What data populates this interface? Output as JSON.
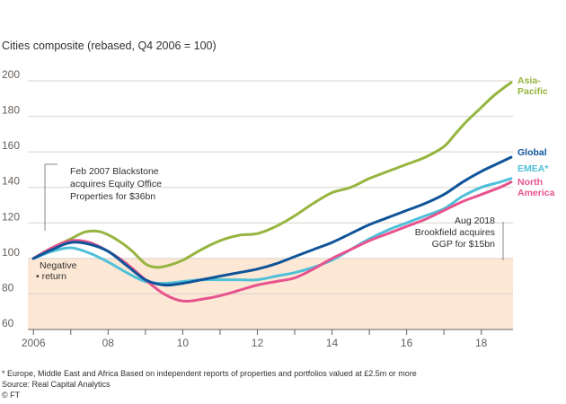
{
  "chart_data": {
    "type": "line",
    "title": "Cities composite (rebased, Q4 2006 = 100)",
    "ylim": [
      60,
      200
    ],
    "y_ticks": [
      60,
      80,
      100,
      120,
      140,
      160,
      180,
      200
    ],
    "xlim": [
      2005.85,
      2018.85
    ],
    "x_ticks": [
      {
        "value": 2006,
        "label": "2006"
      },
      {
        "value": 2008,
        "label": "08"
      },
      {
        "value": 2010,
        "label": "10"
      },
      {
        "value": 2012,
        "label": "12"
      },
      {
        "value": 2014,
        "label": "14"
      },
      {
        "value": 2016,
        "label": "16"
      },
      {
        "value": 2018,
        "label": "18"
      }
    ],
    "negative_region": {
      "from": 60,
      "to": 100,
      "label": [
        "Negative",
        "return"
      ],
      "color": "#fde8d6"
    },
    "series": [
      {
        "name": "Asia-Pacific",
        "label_lines": [
          "Asia-",
          "Pacific"
        ],
        "color": "#96b53e",
        "x": [
          2006.0,
          2006.5,
          2007.0,
          2007.4,
          2007.8,
          2008.2,
          2008.6,
          2009.0,
          2009.3,
          2009.6,
          2010.0,
          2010.5,
          2011.0,
          2011.5,
          2012.0,
          2012.5,
          2013.0,
          2013.5,
          2014.0,
          2014.5,
          2015.0,
          2015.5,
          2016.0,
          2016.5,
          2017.0,
          2017.3,
          2017.6,
          2018.0,
          2018.3,
          2018.6,
          2018.8
        ],
        "values": [
          100,
          106,
          111,
          115,
          115,
          111,
          105,
          97,
          95,
          96,
          99,
          105,
          110,
          113,
          114,
          118,
          124,
          131,
          137,
          140,
          145,
          149,
          153,
          157,
          163,
          170,
          177,
          185,
          191,
          196,
          199
        ]
      },
      {
        "name": "Global",
        "label_lines": [
          "Global"
        ],
        "color": "#0f5499",
        "x": [
          2006.0,
          2006.5,
          2007.0,
          2007.5,
          2008.0,
          2008.5,
          2009.0,
          2009.5,
          2010.0,
          2010.5,
          2011.0,
          2011.5,
          2012.0,
          2012.5,
          2013.0,
          2013.5,
          2014.0,
          2014.5,
          2015.0,
          2015.5,
          2016.0,
          2016.5,
          2017.0,
          2017.5,
          2018.0,
          2018.5,
          2018.8
        ],
        "values": [
          100,
          105,
          109,
          108,
          104,
          96,
          88,
          85,
          86,
          88,
          90,
          92,
          94,
          97,
          101,
          105,
          109,
          114,
          119,
          123,
          127,
          131,
          136,
          143,
          149,
          154,
          157
        ]
      },
      {
        "name": "EMEA*",
        "label_lines": [
          "EMEA*"
        ],
        "color": "#4fc0d8",
        "x": [
          2006.0,
          2006.5,
          2007.0,
          2007.5,
          2008.0,
          2008.5,
          2009.0,
          2009.5,
          2010.0,
          2010.5,
          2011.0,
          2011.5,
          2012.0,
          2012.5,
          2013.0,
          2013.5,
          2014.0,
          2014.5,
          2015.0,
          2015.5,
          2016.0,
          2016.5,
          2017.0,
          2017.5,
          2018.0,
          2018.5,
          2018.8
        ],
        "values": [
          100,
          104,
          106,
          103,
          98,
          92,
          87,
          86,
          87,
          88,
          88,
          88,
          88,
          90,
          92,
          95,
          99,
          105,
          111,
          116,
          120,
          124,
          128,
          135,
          140,
          143,
          145
        ]
      },
      {
        "name": "North America",
        "label_lines": [
          "North",
          "America"
        ],
        "color": "#e8538e",
        "x": [
          2006.0,
          2006.5,
          2007.0,
          2007.5,
          2008.0,
          2008.5,
          2009.0,
          2009.5,
          2010.0,
          2010.5,
          2011.0,
          2011.5,
          2012.0,
          2012.5,
          2013.0,
          2013.5,
          2014.0,
          2014.5,
          2015.0,
          2015.5,
          2016.0,
          2016.5,
          2017.0,
          2017.5,
          2018.0,
          2018.5,
          2018.8
        ],
        "values": [
          100,
          106,
          110,
          109,
          104,
          97,
          88,
          80,
          76,
          77,
          79,
          82,
          85,
          87,
          89,
          94,
          100,
          105,
          110,
          114,
          118,
          122,
          127,
          132,
          136,
          140,
          143
        ]
      }
    ],
    "annotations": [
      {
        "name": "blackstone",
        "x": 2007.1,
        "lines": [
          "Feb 2007 Blackstone",
          "acquires Equity Office",
          "Properties for $36bn"
        ]
      },
      {
        "name": "brookfield",
        "x": 2018.5,
        "lines": [
          "Aug 2018",
          "Brookfield acquires",
          "GGP for $15bn"
        ]
      }
    ],
    "footnote": "* Europe, Middle East and Africa   Based on independent reports of properties and portfolios valued at £2.5m or more",
    "source": "Source: Real Capital Analytics",
    "credit": "© FT"
  }
}
